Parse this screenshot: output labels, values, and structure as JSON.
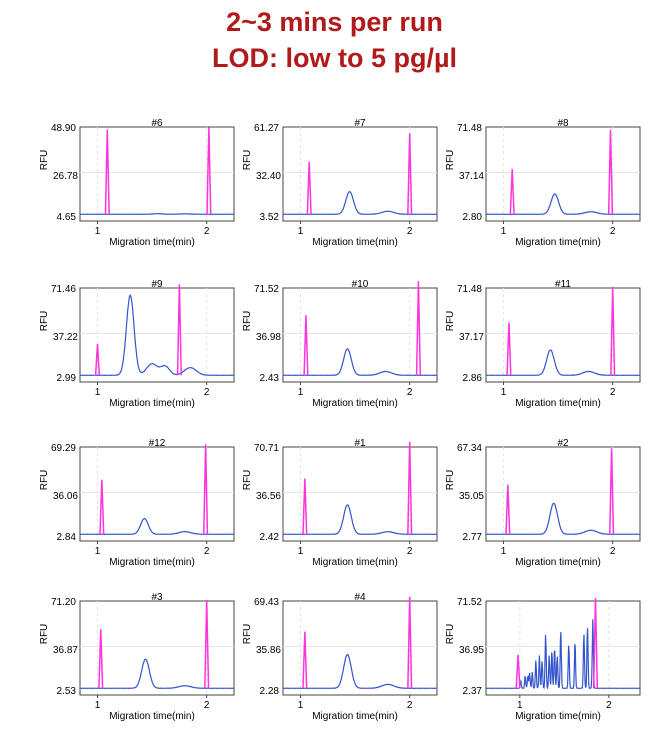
{
  "header": {
    "line1": "2~3 mins per run",
    "line2": "LOD: low to 5 pg/µl"
  },
  "colors": {
    "marker": "#ff33dd",
    "trace": "#3355cc",
    "title": "#b01a1a"
  },
  "chart_data": [
    {
      "type": "line",
      "title": "#6",
      "xlabel": "Migration time(min)",
      "ylabel": "RFU",
      "ymax": "48.90",
      "ymid": "26.78",
      "ymin": "4.65",
      "xticks": [
        "1",
        "2"
      ],
      "ylim": [
        4.65,
        48.9
      ],
      "xlim": [
        0.84,
        2.25
      ],
      "markers": [
        {
          "x": 1.09,
          "height": 44
        },
        {
          "x": 2.02,
          "height": 45
        }
      ],
      "peaks": [
        {
          "x": 1.55,
          "height": 0.3,
          "width": 0.04
        }
      ],
      "baseline_bump": {
        "x": 1.8,
        "height": 0.2
      }
    },
    {
      "type": "line",
      "title": "#7",
      "xlabel": "Migration time(min)",
      "ylabel": "RFU",
      "ymax": "61.27",
      "ymid": "32.40",
      "ymin": "3.52",
      "xticks": [
        "1",
        "2"
      ],
      "ylim": [
        3.52,
        61.27
      ],
      "xlim": [
        0.84,
        2.25
      ],
      "markers": [
        {
          "x": 1.08,
          "height": 36
        },
        {
          "x": 2.0,
          "height": 55
        }
      ],
      "peaks": [
        {
          "x": 1.45,
          "height": 15,
          "width": 0.035
        }
      ],
      "baseline_bump": {
        "x": 1.8,
        "height": 2
      }
    },
    {
      "type": "line",
      "title": "#8",
      "xlabel": "Migration time(min)",
      "ylabel": "RFU",
      "ymax": "71.48",
      "ymid": "37.14",
      "ymin": "2.80",
      "xticks": [
        "1",
        "2"
      ],
      "ylim": [
        2.8,
        71.48
      ],
      "xlim": [
        0.84,
        2.25
      ],
      "markers": [
        {
          "x": 1.08,
          "height": 37
        },
        {
          "x": 1.98,
          "height": 68
        }
      ],
      "peaks": [
        {
          "x": 1.47,
          "height": 16,
          "width": 0.035
        }
      ],
      "baseline_bump": {
        "x": 1.8,
        "height": 2
      }
    },
    {
      "type": "line",
      "title": "#9",
      "xlabel": "Migration time(min)",
      "ylabel": "RFU",
      "ymax": "71.46",
      "ymid": "37.22",
      "ymin": "2.99",
      "xticks": [
        "1",
        "2"
      ],
      "ylim": [
        2.99,
        71.46
      ],
      "xlim": [
        0.84,
        2.25
      ],
      "markers": [
        {
          "x": 1.0,
          "height": 26
        },
        {
          "x": 1.75,
          "height": 73
        }
      ],
      "peaks": [
        {
          "x": 1.3,
          "height": 63,
          "width": 0.035
        },
        {
          "x": 1.5,
          "height": 9,
          "width": 0.05
        },
        {
          "x": 1.62,
          "height": 7,
          "width": 0.04
        }
      ],
      "baseline_bump": {
        "x": 1.85,
        "height": 6
      }
    },
    {
      "type": "line",
      "title": "#10",
      "xlabel": "Migration time(min)",
      "ylabel": "RFU",
      "ymax": "71.52",
      "ymid": "36.98",
      "ymin": "2.43",
      "xticks": [
        "1",
        "2"
      ],
      "ylim": [
        2.43,
        71.52
      ],
      "xlim": [
        0.84,
        2.25
      ],
      "markers": [
        {
          "x": 1.05,
          "height": 49
        },
        {
          "x": 2.08,
          "height": 76
        }
      ],
      "peaks": [
        {
          "x": 1.43,
          "height": 21,
          "width": 0.035
        }
      ],
      "baseline_bump": {
        "x": 1.78,
        "height": 3
      }
    },
    {
      "type": "line",
      "title": "#11",
      "xlabel": "Migration time(min)",
      "ylabel": "RFU",
      "ymax": "71.48",
      "ymid": "37.17",
      "ymin": "2.86",
      "xticks": [
        "1",
        "2"
      ],
      "ylim": [
        2.86,
        71.48
      ],
      "xlim": [
        0.84,
        2.25
      ],
      "markers": [
        {
          "x": 1.05,
          "height": 43
        },
        {
          "x": 2.0,
          "height": 71
        }
      ],
      "peaks": [
        {
          "x": 1.43,
          "height": 20,
          "width": 0.035
        }
      ],
      "baseline_bump": {
        "x": 1.78,
        "height": 3
      }
    },
    {
      "type": "line",
      "title": "#12",
      "xlabel": "Migration time(min)",
      "ylabel": "RFU",
      "ymax": "69.29",
      "ymid": "36.06",
      "ymin": "2.84",
      "xticks": [
        "1",
        "2"
      ],
      "ylim": [
        2.84,
        69.29
      ],
      "xlim": [
        0.84,
        2.25
      ],
      "markers": [
        {
          "x": 1.04,
          "height": 43
        },
        {
          "x": 1.99,
          "height": 70
        }
      ],
      "peaks": [
        {
          "x": 1.43,
          "height": 12,
          "width": 0.035
        }
      ],
      "baseline_bump": {
        "x": 1.8,
        "height": 2
      }
    },
    {
      "type": "line",
      "title": "#1",
      "xlabel": "Migration time(min)",
      "ylabel": "RFU",
      "ymax": "70.71",
      "ymid": "36.56",
      "ymin": "2.42",
      "xticks": [
        "1",
        "2"
      ],
      "ylim": [
        2.42,
        70.71
      ],
      "xlim": [
        0.84,
        2.25
      ],
      "markers": [
        {
          "x": 1.04,
          "height": 45
        },
        {
          "x": 2.0,
          "height": 74
        }
      ],
      "peaks": [
        {
          "x": 1.43,
          "height": 23,
          "width": 0.035
        }
      ],
      "baseline_bump": {
        "x": 1.8,
        "height": 2
      }
    },
    {
      "type": "line",
      "title": "#2",
      "xlabel": "Migration time(min)",
      "ylabel": "RFU",
      "ymax": "67.34",
      "ymid": "35.05",
      "ymin": "2.77",
      "xticks": [
        "1",
        "2"
      ],
      "ylim": [
        2.77,
        67.34
      ],
      "xlim": [
        0.84,
        2.25
      ],
      "markers": [
        {
          "x": 1.04,
          "height": 38
        },
        {
          "x": 1.99,
          "height": 65
        }
      ],
      "peaks": [
        {
          "x": 1.46,
          "height": 23,
          "width": 0.035
        }
      ],
      "baseline_bump": {
        "x": 1.8,
        "height": 3
      }
    },
    {
      "type": "line",
      "title": "#3",
      "xlabel": "Migration time(min)",
      "ylabel": "RFU",
      "ymax": "71.20",
      "ymid": "36.87",
      "ymin": "2.53",
      "xticks": [
        "1",
        "2"
      ],
      "ylim": [
        2.53,
        71.2
      ],
      "xlim": [
        0.84,
        2.25
      ],
      "markers": [
        {
          "x": 1.03,
          "height": 48
        },
        {
          "x": 2.0,
          "height": 71
        }
      ],
      "peaks": [
        {
          "x": 1.44,
          "height": 23,
          "width": 0.035
        }
      ],
      "baseline_bump": {
        "x": 1.8,
        "height": 2
      }
    },
    {
      "type": "line",
      "title": "#4",
      "xlabel": "Migration time(min)",
      "ylabel": "RFU",
      "ymax": "69.43",
      "ymid": "35.86",
      "ymin": "2.28",
      "xticks": [
        "1",
        "2"
      ],
      "ylim": [
        2.28,
        69.43
      ],
      "xlim": [
        0.84,
        2.25
      ],
      "markers": [
        {
          "x": 1.04,
          "height": 45
        },
        {
          "x": 2.0,
          "height": 72
        }
      ],
      "peaks": [
        {
          "x": 1.43,
          "height": 26,
          "width": 0.035
        }
      ],
      "baseline_bump": {
        "x": 1.8,
        "height": 3
      }
    },
    {
      "type": "line",
      "title": "",
      "xlabel": "Migration time(min)",
      "ylabel": "RFU",
      "ymax": "71.52",
      "ymid": "36.95",
      "ymin": "2.37",
      "xticks": [
        "1",
        "2"
      ],
      "ylim": [
        2.37,
        71.52
      ],
      "xlim": [
        0.62,
        2.35
      ],
      "markers": [
        {
          "x": 0.98,
          "height": 28
        },
        {
          "x": 1.85,
          "height": 73
        }
      ],
      "peaks": [
        {
          "x": 1.01,
          "height": 6,
          "width": 0.006
        },
        {
          "x": 1.06,
          "height": 10,
          "width": 0.006
        },
        {
          "x": 1.09,
          "height": 10,
          "width": 0.006
        },
        {
          "x": 1.11,
          "height": 12,
          "width": 0.006
        },
        {
          "x": 1.14,
          "height": 13,
          "width": 0.006
        },
        {
          "x": 1.18,
          "height": 22,
          "width": 0.006
        },
        {
          "x": 1.22,
          "height": 26,
          "width": 0.006
        },
        {
          "x": 1.25,
          "height": 22,
          "width": 0.006
        },
        {
          "x": 1.29,
          "height": 43,
          "width": 0.006
        },
        {
          "x": 1.33,
          "height": 26,
          "width": 0.006
        },
        {
          "x": 1.36,
          "height": 30,
          "width": 0.006
        },
        {
          "x": 1.39,
          "height": 33,
          "width": 0.006
        },
        {
          "x": 1.42,
          "height": 26,
          "width": 0.006
        },
        {
          "x": 1.46,
          "height": 47,
          "width": 0.006
        },
        {
          "x": 1.55,
          "height": 35,
          "width": 0.006
        },
        {
          "x": 1.62,
          "height": 38,
          "width": 0.006
        },
        {
          "x": 1.72,
          "height": 44,
          "width": 0.006
        },
        {
          "x": 1.76,
          "height": 50,
          "width": 0.006
        },
        {
          "x": 1.82,
          "height": 55,
          "width": 0.006
        }
      ],
      "baseline_bump": {
        "x": 1.95,
        "height": 0
      }
    }
  ]
}
